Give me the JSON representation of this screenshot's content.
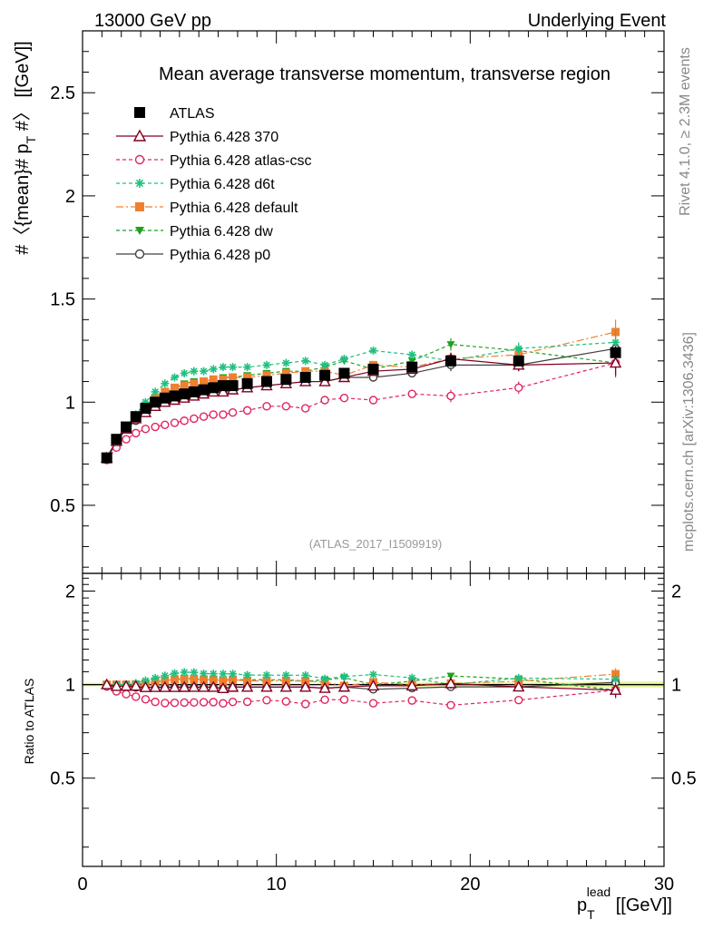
{
  "header": {
    "left": "13000 GeV pp",
    "right": "Underlying Event"
  },
  "side_labels": {
    "rivet": "Rivet 4.1.0, ≥ 2.3M events",
    "mcplots": "mcplots.cern.ch [arXiv:1306.3436]"
  },
  "chart_data": [
    {
      "type": "line",
      "panel": "main",
      "title": "Mean average transverse momentum, transverse region",
      "watermark": "(ATLAS_2017_I1509919)",
      "ylabel": "#〈{mean}# p_T #〉 [[GeV]]",
      "ylabel_parts": {
        "pre": "#〈{mean}# p",
        "sub": "T",
        "post": " #〉 [[GeV]]"
      },
      "xlim": [
        0,
        30
      ],
      "ylim": [
        0.17,
        2.8
      ],
      "yticks": [
        0.5,
        1,
        1.5,
        2,
        2.5
      ],
      "ytick_labels": [
        "0.5",
        "1",
        "1.5",
        "2",
        "2.5"
      ],
      "legend_position": "top-left",
      "series": [
        {
          "name": "ATLAS",
          "color": "#000000",
          "marker": "square-filled",
          "dash": "none",
          "x": [
            1.25,
            1.75,
            2.25,
            2.75,
            3.25,
            3.75,
            4.25,
            4.75,
            5.25,
            5.75,
            6.25,
            6.75,
            7.25,
            7.75,
            8.5,
            9.5,
            10.5,
            11.5,
            12.5,
            13.5,
            15,
            17,
            19,
            22.5,
            27.5
          ],
          "y": [
            0.73,
            0.82,
            0.88,
            0.93,
            0.97,
            1.0,
            1.02,
            1.03,
            1.04,
            1.05,
            1.06,
            1.07,
            1.08,
            1.08,
            1.09,
            1.1,
            1.11,
            1.12,
            1.13,
            1.14,
            1.16,
            1.17,
            1.2,
            1.2,
            1.24
          ],
          "err": [
            0.01,
            0.01,
            0.01,
            0.01,
            0.01,
            0.01,
            0.01,
            0.01,
            0.01,
            0.01,
            0.01,
            0.01,
            0.01,
            0.01,
            0.01,
            0.01,
            0.01,
            0.01,
            0.01,
            0.01,
            0.01,
            0.02,
            0.02,
            0.02,
            0.03
          ]
        },
        {
          "name": "Pythia 6.428 370",
          "color": "#800020",
          "marker": "triangle-open",
          "dash": "none",
          "x": [
            1.25,
            1.75,
            2.25,
            2.75,
            3.25,
            3.75,
            4.25,
            4.75,
            5.25,
            5.75,
            6.25,
            6.75,
            7.25,
            7.75,
            8.5,
            9.5,
            10.5,
            11.5,
            12.5,
            13.5,
            15,
            17,
            19,
            22.5,
            27.5
          ],
          "y": [
            0.73,
            0.81,
            0.87,
            0.92,
            0.95,
            0.98,
            1.0,
            1.01,
            1.02,
            1.03,
            1.04,
            1.05,
            1.05,
            1.06,
            1.07,
            1.08,
            1.09,
            1.1,
            1.1,
            1.12,
            1.15,
            1.16,
            1.21,
            1.18,
            1.19
          ],
          "err": [
            0.005,
            0.005,
            0.005,
            0.005,
            0.005,
            0.005,
            0.005,
            0.005,
            0.006,
            0.006,
            0.006,
            0.006,
            0.007,
            0.007,
            0.008,
            0.01,
            0.01,
            0.01,
            0.012,
            0.012,
            0.015,
            0.02,
            0.03,
            0.03,
            0.06
          ]
        },
        {
          "name": "Pythia 6.428 atlas-csc",
          "color": "#e0245e",
          "marker": "circle-open",
          "dash": "4,3",
          "x": [
            1.25,
            1.75,
            2.25,
            2.75,
            3.25,
            3.75,
            4.25,
            4.75,
            5.25,
            5.75,
            6.25,
            6.75,
            7.25,
            7.75,
            8.5,
            9.5,
            10.5,
            11.5,
            12.5,
            13.5,
            15,
            17,
            19,
            22.5,
            27.5
          ],
          "y": [
            0.72,
            0.78,
            0.82,
            0.85,
            0.87,
            0.88,
            0.89,
            0.9,
            0.91,
            0.92,
            0.93,
            0.94,
            0.94,
            0.95,
            0.96,
            0.98,
            0.98,
            0.97,
            1.01,
            1.02,
            1.01,
            1.04,
            1.03,
            1.07,
            1.19
          ],
          "err": [
            0.005,
            0.005,
            0.005,
            0.005,
            0.005,
            0.005,
            0.005,
            0.005,
            0.006,
            0.006,
            0.006,
            0.006,
            0.007,
            0.007,
            0.008,
            0.01,
            0.01,
            0.01,
            0.012,
            0.012,
            0.015,
            0.02,
            0.03,
            0.03,
            0.07
          ]
        },
        {
          "name": "Pythia 6.428 d6t",
          "color": "#20c080",
          "marker": "star",
          "dash": "4,3",
          "x": [
            1.25,
            1.75,
            2.25,
            2.75,
            3.25,
            3.75,
            4.25,
            4.75,
            5.25,
            5.75,
            6.25,
            6.75,
            7.25,
            7.75,
            8.5,
            9.5,
            10.5,
            11.5,
            12.5,
            13.5,
            15,
            17,
            19,
            22.5,
            27.5
          ],
          "y": [
            0.73,
            0.82,
            0.88,
            0.94,
            1.0,
            1.05,
            1.09,
            1.12,
            1.14,
            1.15,
            1.15,
            1.16,
            1.17,
            1.17,
            1.17,
            1.18,
            1.19,
            1.2,
            1.18,
            1.21,
            1.25,
            1.23,
            1.2,
            1.26,
            1.29
          ],
          "err": [
            0.005,
            0.005,
            0.005,
            0.005,
            0.005,
            0.005,
            0.005,
            0.005,
            0.006,
            0.006,
            0.006,
            0.006,
            0.007,
            0.007,
            0.008,
            0.01,
            0.01,
            0.01,
            0.012,
            0.012,
            0.015,
            0.02,
            0.03,
            0.03,
            0.06
          ]
        },
        {
          "name": "Pythia 6.428 default",
          "color": "#f08030",
          "marker": "square-filled",
          "dash": "8,3,2,3",
          "x": [
            1.25,
            1.75,
            2.25,
            2.75,
            3.25,
            3.75,
            4.25,
            4.75,
            5.25,
            5.75,
            6.25,
            6.75,
            7.25,
            7.75,
            8.5,
            9.5,
            10.5,
            11.5,
            12.5,
            13.5,
            15,
            17,
            19,
            22.5,
            27.5
          ],
          "y": [
            0.73,
            0.82,
            0.88,
            0.93,
            0.98,
            1.02,
            1.05,
            1.07,
            1.08,
            1.09,
            1.1,
            1.11,
            1.11,
            1.12,
            1.12,
            1.13,
            1.14,
            1.15,
            1.15,
            1.13,
            1.18,
            1.17,
            1.21,
            1.23,
            1.34
          ],
          "err": [
            0.005,
            0.005,
            0.005,
            0.005,
            0.005,
            0.005,
            0.005,
            0.005,
            0.006,
            0.006,
            0.006,
            0.006,
            0.007,
            0.007,
            0.008,
            0.01,
            0.01,
            0.01,
            0.012,
            0.012,
            0.015,
            0.02,
            0.03,
            0.03,
            0.06
          ]
        },
        {
          "name": "Pythia 6.428 dw",
          "color": "#20a020",
          "marker": "triangle-down-filled",
          "dash": "4,3",
          "x": [
            1.25,
            1.75,
            2.25,
            2.75,
            3.25,
            3.75,
            4.25,
            4.75,
            5.25,
            5.75,
            6.25,
            6.75,
            7.25,
            7.75,
            8.5,
            9.5,
            10.5,
            11.5,
            12.5,
            13.5,
            15,
            17,
            19,
            22.5,
            27.5
          ],
          "y": [
            0.73,
            0.82,
            0.88,
            0.93,
            0.98,
            1.02,
            1.05,
            1.07,
            1.09,
            1.1,
            1.1,
            1.11,
            1.12,
            1.12,
            1.13,
            1.14,
            1.15,
            1.15,
            1.17,
            1.2,
            1.16,
            1.2,
            1.28,
            1.25,
            1.19
          ],
          "err": [
            0.005,
            0.005,
            0.005,
            0.005,
            0.005,
            0.005,
            0.005,
            0.005,
            0.006,
            0.006,
            0.006,
            0.006,
            0.007,
            0.007,
            0.008,
            0.01,
            0.01,
            0.01,
            0.012,
            0.012,
            0.015,
            0.02,
            0.03,
            0.03,
            0.06
          ]
        },
        {
          "name": "Pythia 6.428 p0",
          "color": "#404040",
          "marker": "circle-open",
          "dash": "none",
          "x": [
            1.25,
            1.75,
            2.25,
            2.75,
            3.25,
            3.75,
            4.25,
            4.75,
            5.25,
            5.75,
            6.25,
            6.75,
            7.25,
            7.75,
            8.5,
            9.5,
            10.5,
            11.5,
            12.5,
            13.5,
            15,
            17,
            19,
            22.5,
            27.5
          ],
          "y": [
            0.72,
            0.81,
            0.87,
            0.91,
            0.95,
            0.98,
            1.0,
            1.01,
            1.02,
            1.03,
            1.04,
            1.05,
            1.05,
            1.06,
            1.07,
            1.08,
            1.09,
            1.1,
            1.1,
            1.12,
            1.12,
            1.14,
            1.18,
            1.18,
            1.26
          ],
          "err": [
            0.005,
            0.005,
            0.005,
            0.005,
            0.005,
            0.005,
            0.005,
            0.005,
            0.006,
            0.006,
            0.006,
            0.006,
            0.007,
            0.007,
            0.008,
            0.01,
            0.01,
            0.01,
            0.012,
            0.012,
            0.015,
            0.02,
            0.03,
            0.03,
            0.06
          ]
        }
      ]
    },
    {
      "type": "line",
      "panel": "ratio",
      "ylabel": "Ratio to ATLAS",
      "xlabel": "p_T^lead [[GeV]]",
      "xlabel_parts": {
        "base": "p",
        "sub": "T",
        "sup": "lead",
        "post": " [[GeV]]"
      },
      "xlim": [
        0,
        30
      ],
      "ylim": [
        0.26,
        2.28
      ],
      "xticks": [
        0,
        10,
        20,
        30
      ],
      "xtick_labels": [
        "0",
        "10",
        "20",
        "30"
      ],
      "yticks": [
        0.5,
        1,
        2
      ],
      "ytick_labels": [
        "0.5",
        "1",
        "2"
      ],
      "reference_band": {
        "color": "#ccee66",
        "outer_color": "#eef8aa"
      }
    }
  ]
}
